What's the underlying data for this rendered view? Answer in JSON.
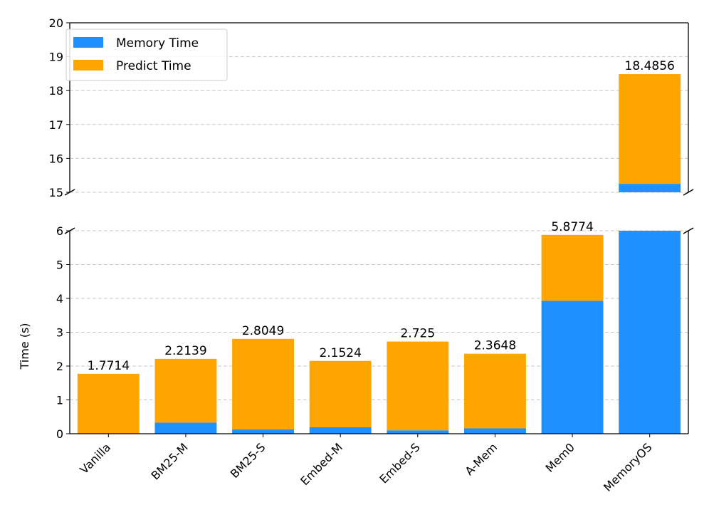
{
  "chart_data": {
    "type": "bar",
    "stacked": true,
    "broken_y_axis": true,
    "categories": [
      "Vanilla",
      "BM25-M",
      "BM25-S",
      "Embed-M",
      "Embed-S",
      "A-Mem",
      "Mem0",
      "MemoryOS"
    ],
    "series": [
      {
        "name": "Memory Time",
        "color": "#1e90ff",
        "values": [
          0.0,
          0.33,
          0.13,
          0.19,
          0.1,
          0.16,
          3.93,
          15.25
        ]
      },
      {
        "name": "Predict Time",
        "color": "#ffa500",
        "values": [
          1.7714,
          1.8839,
          2.6749,
          1.9624,
          2.625,
          2.2048,
          1.9474,
          3.2356
        ]
      }
    ],
    "totals": [
      "1.7714",
      "2.2139",
      "2.8049",
      "2.1524",
      "2.725",
      "2.3648",
      "5.8774",
      "18.4856"
    ],
    "ylabel": "Time (s)",
    "ylim_lower": [
      0,
      6
    ],
    "ylim_upper": [
      15,
      20
    ],
    "yticks_lower": [
      "0",
      "1",
      "2",
      "3",
      "4",
      "5",
      "6"
    ],
    "yticks_upper": [
      "15",
      "16",
      "17",
      "18",
      "19",
      "20"
    ],
    "grid": "horizontal dashed",
    "legend_position": "top-left"
  }
}
